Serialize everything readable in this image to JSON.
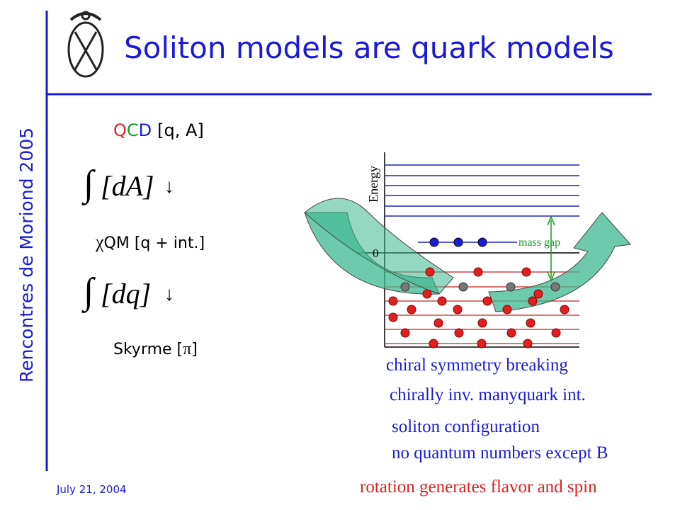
{
  "header": {
    "title": "Soliton models are quark models",
    "side_label": "Rencontres de Moriond 2005"
  },
  "footer": {
    "date": "July 21, 2004"
  },
  "left": {
    "qcd": {
      "letters": [
        "Q",
        "C",
        "D"
      ],
      "rest": "[q, A]"
    },
    "integral_gluon": {
      "symbol": "∫",
      "measure": "[dA]",
      "arrow": "↓"
    },
    "chiral_qm": {
      "symbol": "χ",
      "text": "QM [q + int.]"
    },
    "integral_quark": {
      "symbol": "∫",
      "measure": "[dq]",
      "arrow": "↓"
    },
    "skyrme": {
      "text": "Skyrme [",
      "symbol": "π",
      "close": "]"
    }
  },
  "diagram": {
    "axis_label": "Energy",
    "zero_label": "0",
    "gap_label": "mass gap"
  },
  "captions": [
    "chiral symmetry breaking",
    "chirally inv. manyquark int.",
    "soliton configuration",
    "no quantum numbers except B",
    "rotation generates flavor and spin"
  ]
}
